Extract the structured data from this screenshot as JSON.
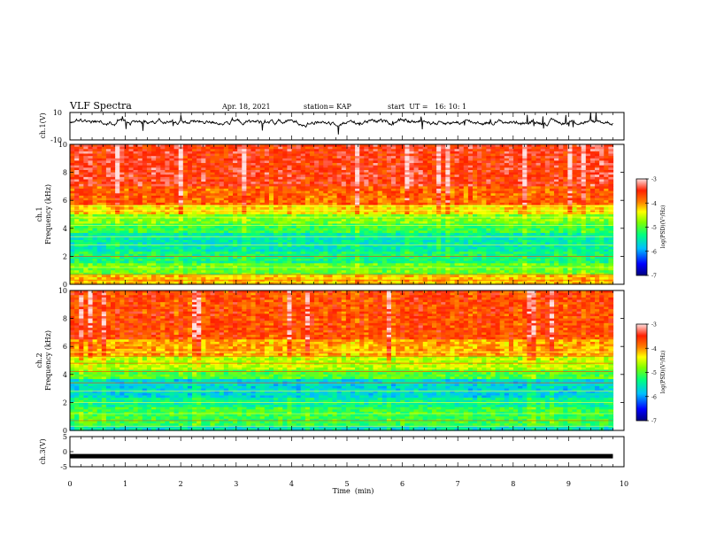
{
  "header": {
    "title": "VLF Spectra",
    "date": "Apr. 18, 2021",
    "station": "station= KAP",
    "start": "start  UT =   16: 10: 1"
  },
  "chart_data": [
    {
      "type": "line",
      "name": "ch1-waveform",
      "ylabel": "ch.1(V)",
      "ylim": [
        -10,
        10
      ],
      "yticks": [
        10,
        -10
      ],
      "xlim": [
        0,
        10
      ],
      "x_end": 9.8,
      "note_level": "fluctuating signal around 0 to 6 V with spikes reaching ±10 V"
    },
    {
      "type": "heatmap",
      "name": "ch1-spectrogram",
      "ylabel": "ch.1\nFrequency (kHz)",
      "ylabel_lines": [
        "ch.1",
        "Frequency (kHz)"
      ],
      "ylim": [
        0,
        10
      ],
      "yticks": [
        0,
        2,
        4,
        6,
        8,
        10
      ],
      "xlim": [
        0,
        10
      ],
      "x_end": 9.8,
      "colorbar": {
        "label": "log(PSD)(V²/Hz)",
        "range": [
          -7,
          -3
        ],
        "ticks": [
          -3,
          -4,
          -5,
          -6,
          -7
        ],
        "colors": [
          "#000080",
          "#0000ff",
          "#00c0ff",
          "#00ff80",
          "#80ff00",
          "#ffff00",
          "#ff8000",
          "#ff2000",
          "#ffffff"
        ]
      },
      "bands": [
        {
          "f0": 0.0,
          "f1": 0.6,
          "level": -4.2
        },
        {
          "f0": 0.6,
          "f1": 1.5,
          "level": -4.9
        },
        {
          "f0": 1.5,
          "f1": 2.4,
          "level": -5.3
        },
        {
          "f0": 2.4,
          "f1": 3.6,
          "level": -5.5
        },
        {
          "f0": 3.6,
          "f1": 4.3,
          "level": -5.1
        },
        {
          "f0": 4.3,
          "f1": 5.0,
          "level": -4.8
        },
        {
          "f0": 5.0,
          "f1": 5.6,
          "level": -4.3
        },
        {
          "f0": 5.6,
          "f1": 7.0,
          "level": -3.8
        },
        {
          "f0": 7.0,
          "f1": 10.0,
          "level": -3.5
        }
      ]
    },
    {
      "type": "heatmap",
      "name": "ch2-spectrogram",
      "ylabel": "ch.2\nFrequency (kHz)",
      "ylabel_lines": [
        "ch.2",
        "Frequency (kHz)"
      ],
      "ylim": [
        0,
        10
      ],
      "yticks": [
        0,
        2,
        4,
        6,
        8,
        10
      ],
      "xlim": [
        0,
        10
      ],
      "x_end": 9.8,
      "colorbar": {
        "label": "log(PSD)(V²/Hz)",
        "range": [
          -7,
          -3
        ],
        "ticks": [
          -3,
          -4,
          -5,
          -6,
          -7
        ],
        "colors": [
          "#000080",
          "#0000ff",
          "#00c0ff",
          "#00ff80",
          "#80ff00",
          "#ffff00",
          "#ff8000",
          "#ff2000",
          "#ffffff"
        ]
      },
      "bands": [
        {
          "f0": 0.0,
          "f1": 0.4,
          "level": -5.6
        },
        {
          "f0": 0.4,
          "f1": 1.6,
          "level": -5.1
        },
        {
          "f0": 1.6,
          "f1": 2.4,
          "level": -5.4
        },
        {
          "f0": 2.4,
          "f1": 3.6,
          "level": -5.7
        },
        {
          "f0": 3.6,
          "f1": 4.4,
          "level": -5.0
        },
        {
          "f0": 4.4,
          "f1": 5.4,
          "level": -4.6
        },
        {
          "f0": 5.4,
          "f1": 6.5,
          "level": -4.1
        },
        {
          "f0": 6.5,
          "f1": 10.0,
          "level": -3.7
        }
      ]
    },
    {
      "type": "line",
      "name": "ch3-waveform",
      "ylabel": "ch.3(V)",
      "ylim": [
        -5,
        5
      ],
      "yticks": [
        5,
        0,
        -5
      ],
      "xlim": [
        0,
        10
      ],
      "x_end": 9.8,
      "level": -1.5
    }
  ],
  "xaxis": {
    "label": "Time  (min)",
    "ticks": [
      0,
      1,
      2,
      3,
      4,
      5,
      6,
      7,
      8,
      9,
      10
    ]
  }
}
